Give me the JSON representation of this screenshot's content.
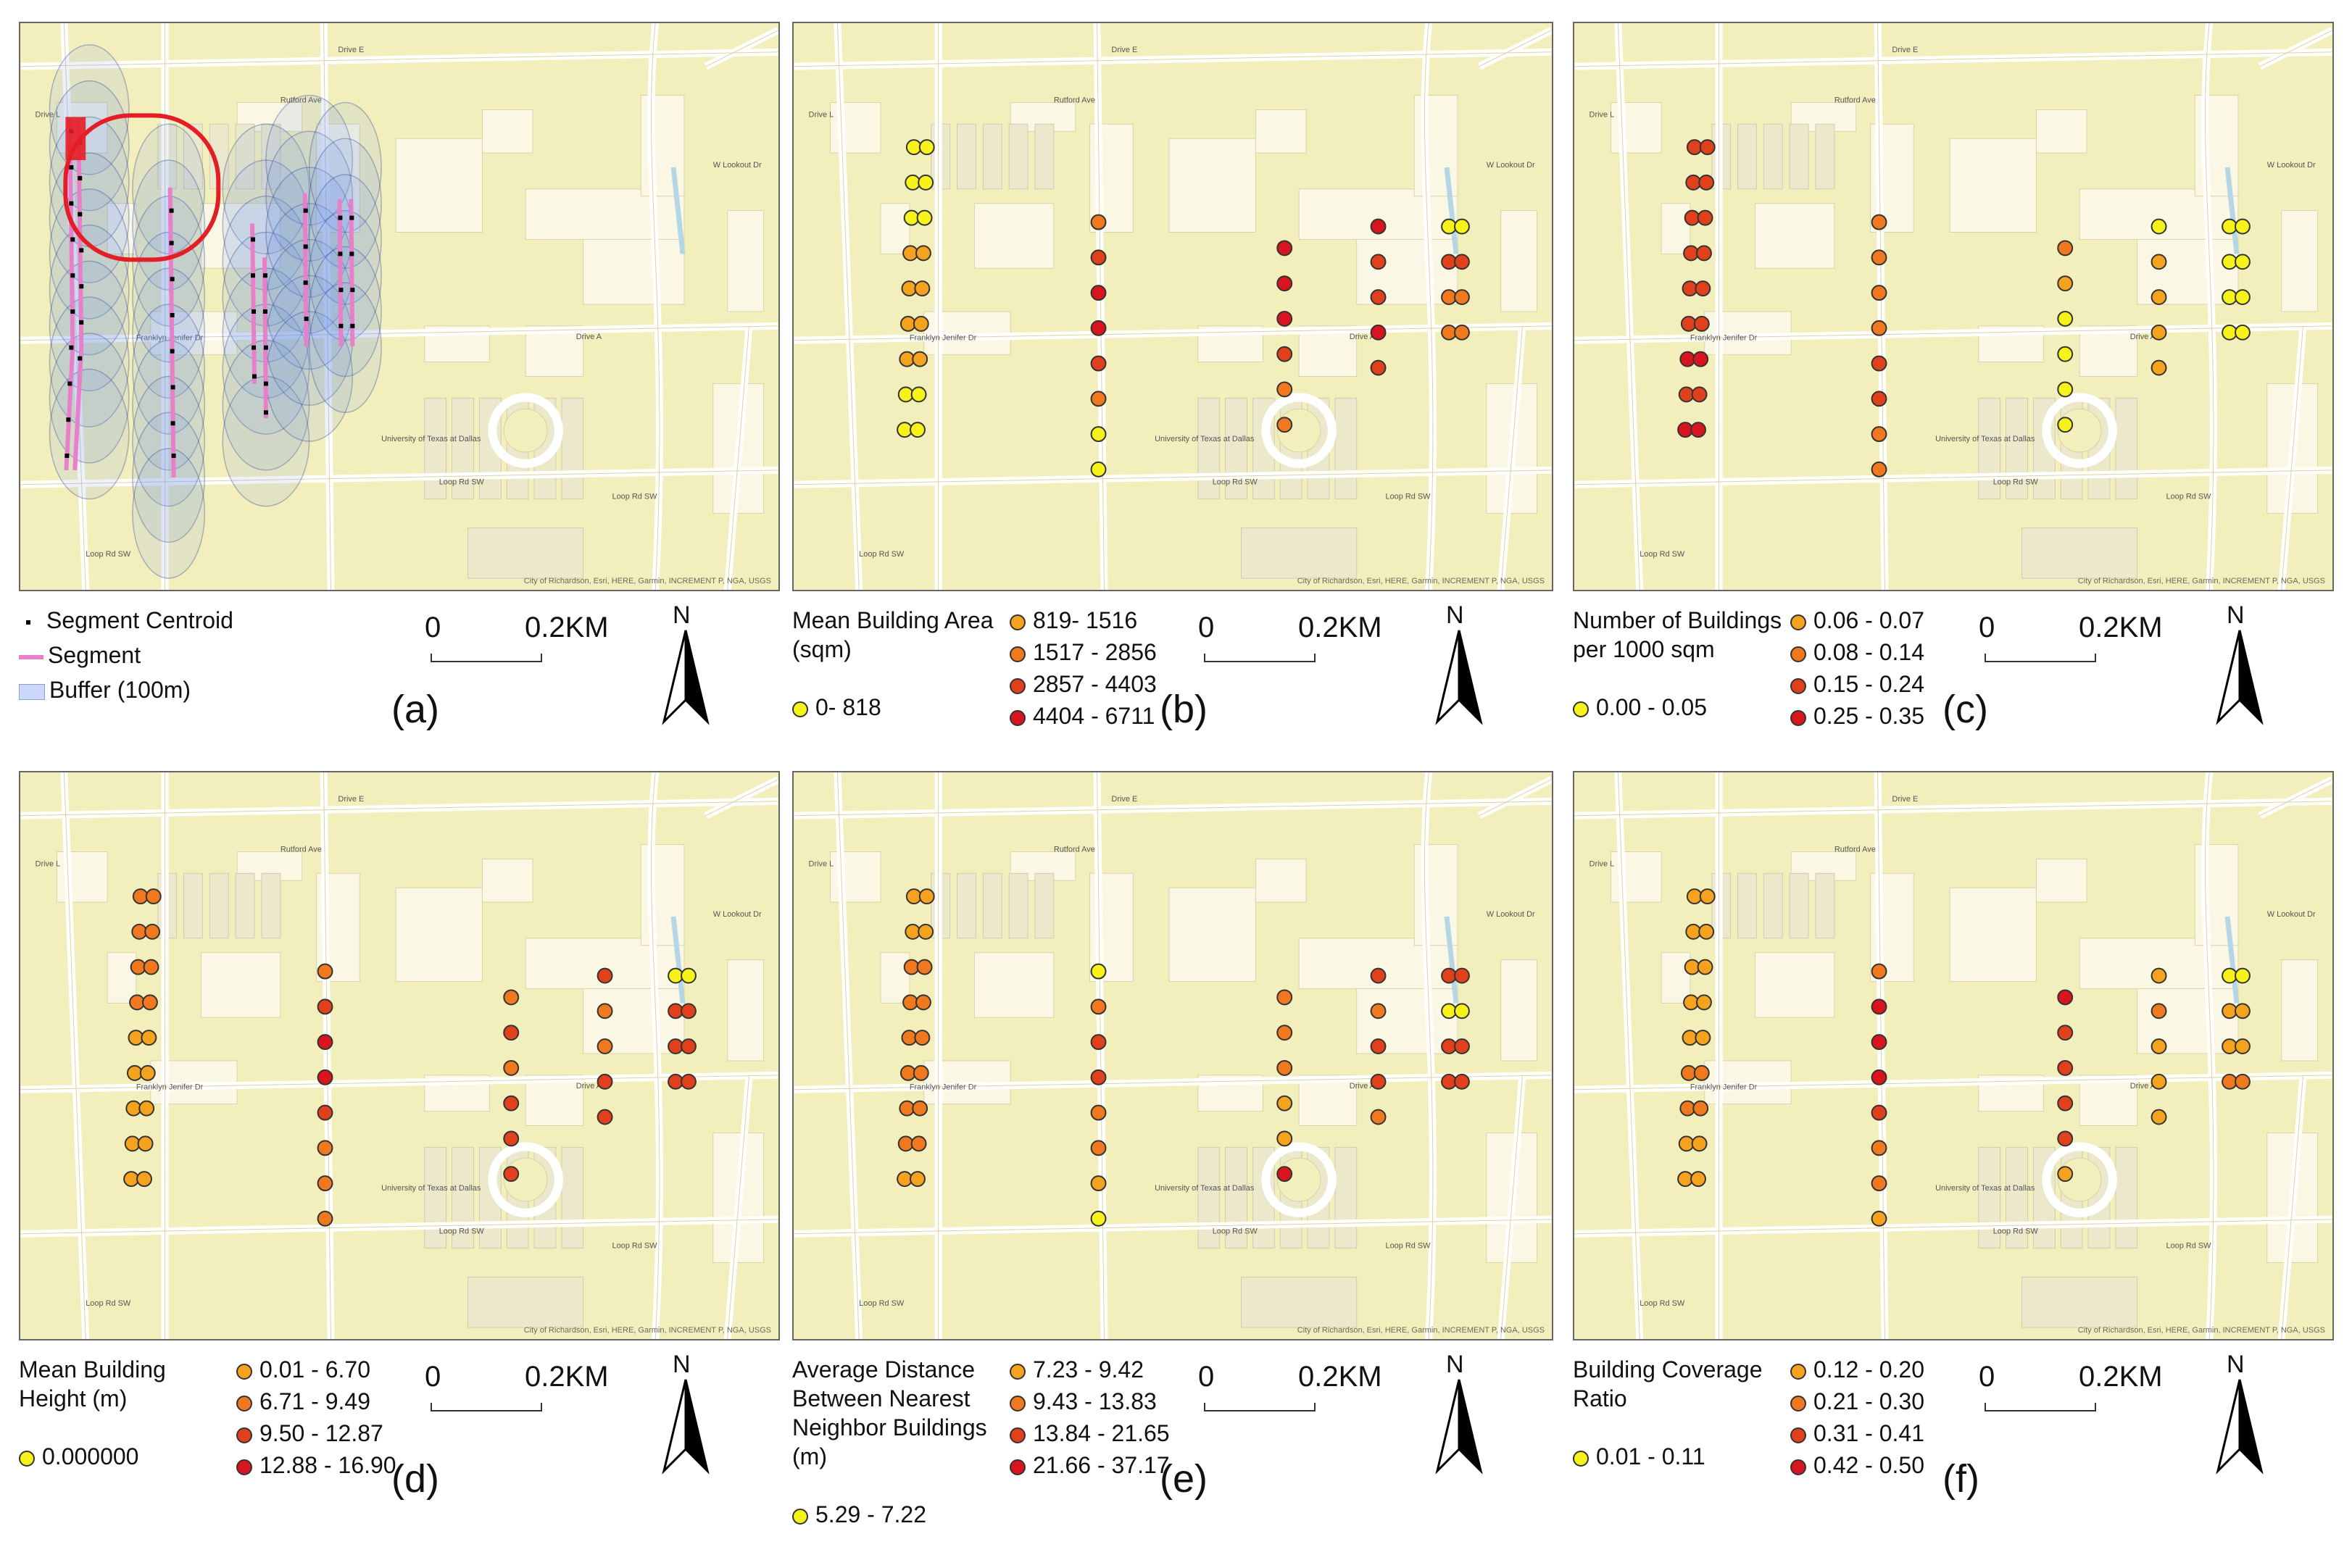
{
  "common": {
    "scale_zero": "0",
    "scale_max": "0.2KM",
    "north_label": "N",
    "attribution": "City of Richardson, Esri, HERE, Garmin, INCREMENT P, NGA, USGS",
    "street_labels": [
      "Drive E",
      "Drive L",
      "Drive A",
      "Franklyn Jenifer Dr",
      "Loop Rd SW",
      "Loop Rd SW",
      "Rutford Ave",
      "W Lookout Dr",
      "Loop Rd SW",
      "University of Texas at Dallas"
    ]
  },
  "colors": {
    "c1": "#f7f21a",
    "c2": "#f5a21e",
    "c3": "#f0781e",
    "c4": "#e0411c",
    "c5": "#d8141e",
    "segment": "#e87fc9",
    "buffer": "#6d8fe8",
    "highlight": "#e41e26"
  },
  "panels": [
    {
      "id": "a",
      "label": "(a)",
      "legend_title": "",
      "items": [
        {
          "label": "Segment Centroid",
          "symbol": "centroid"
        },
        {
          "label": "Segment",
          "symbol": "segment"
        },
        {
          "label": "Buffer (100m)",
          "symbol": "buffer"
        }
      ]
    },
    {
      "id": "b",
      "label": "(b)",
      "legend_title": "Mean Building Area (sqm)",
      "items": [
        {
          "label": "0- 818",
          "color": "#f7f21a"
        },
        {
          "label": "819- 1516",
          "color": "#f5a21e"
        },
        {
          "label": "1517 - 2856",
          "color": "#f0781e"
        },
        {
          "label": "2857 - 4403",
          "color": "#e0411c"
        },
        {
          "label": "4404 - 6711",
          "color": "#d8141e"
        }
      ],
      "columns": [
        [
          1,
          1,
          1,
          2,
          2,
          2,
          2,
          1,
          1
        ],
        [
          3,
          4,
          5,
          5,
          4,
          3,
          1,
          1
        ],
        [
          5,
          5,
          5,
          4,
          3,
          3
        ],
        [
          5,
          4,
          4,
          5,
          4
        ],
        [
          1,
          4,
          3,
          3
        ]
      ]
    },
    {
      "id": "c",
      "label": "(c)",
      "legend_title": "Number of Buildings per 1000 sqm",
      "items": [
        {
          "label": "0.00 - 0.05",
          "color": "#f7f21a"
        },
        {
          "label": "0.06 - 0.07",
          "color": "#f5a21e"
        },
        {
          "label": "0.08 - 0.14",
          "color": "#f0781e"
        },
        {
          "label": "0.15 - 0.24",
          "color": "#e0411c"
        },
        {
          "label": "0.25 - 0.35",
          "color": "#d8141e"
        }
      ],
      "columns": [
        [
          4,
          4,
          4,
          4,
          4,
          4,
          5,
          4,
          5
        ],
        [
          3,
          3,
          3,
          3,
          4,
          4,
          3,
          3
        ],
        [
          3,
          2,
          1,
          1,
          1,
          1
        ],
        [
          1,
          2,
          2,
          2,
          2
        ],
        [
          1,
          1,
          1,
          1
        ]
      ]
    },
    {
      "id": "d",
      "label": "(d)",
      "legend_title": "Mean Building Height (m)",
      "items": [
        {
          "label": "0.000000",
          "color": "#f7f21a"
        },
        {
          "label": "0.01 - 6.70",
          "color": "#f5a21e"
        },
        {
          "label": "6.71 - 9.49",
          "color": "#f0781e"
        },
        {
          "label": "9.50 - 12.87",
          "color": "#e0411c"
        },
        {
          "label": "12.88 - 16.90",
          "color": "#d8141e"
        }
      ],
      "columns": [
        [
          3,
          3,
          3,
          3,
          2,
          2,
          2,
          2,
          2
        ],
        [
          3,
          4,
          5,
          5,
          4,
          3,
          3,
          3
        ],
        [
          3,
          4,
          3,
          4,
          4,
          4
        ],
        [
          4,
          3,
          3,
          4,
          4
        ],
        [
          1,
          4,
          4,
          4
        ]
      ]
    },
    {
      "id": "e",
      "label": "(e)",
      "legend_title": "Average Distance Between Nearest Neighbor Buildings (m)",
      "items": [
        {
          "label": "5.29 - 7.22",
          "color": "#f7f21a"
        },
        {
          "label": "7.23 - 9.42",
          "color": "#f5a21e"
        },
        {
          "label": "9.43 - 13.83",
          "color": "#f0781e"
        },
        {
          "label": "13.84 - 21.65",
          "color": "#e0411c"
        },
        {
          "label": "21.66 - 37.17",
          "color": "#d8141e"
        }
      ],
      "columns": [
        [
          2,
          2,
          3,
          3,
          3,
          3,
          3,
          3,
          2
        ],
        [
          1,
          3,
          4,
          4,
          3,
          3,
          2,
          1
        ],
        [
          3,
          3,
          3,
          2,
          2,
          5
        ],
        [
          4,
          3,
          4,
          4,
          3
        ],
        [
          4,
          1,
          4,
          4
        ]
      ]
    },
    {
      "id": "f",
      "label": "(f)",
      "legend_title": "Building Coverage Ratio",
      "items": [
        {
          "label": "0.01 - 0.11",
          "color": "#f7f21a"
        },
        {
          "label": "0.12 - 0.20",
          "color": "#f5a21e"
        },
        {
          "label": "0.21 - 0.30",
          "color": "#f0781e"
        },
        {
          "label": "0.31 - 0.41",
          "color": "#e0411c"
        },
        {
          "label": "0.42 - 0.50",
          "color": "#d8141e"
        }
      ],
      "columns": [
        [
          2,
          2,
          2,
          2,
          2,
          3,
          3,
          2,
          2
        ],
        [
          3,
          5,
          5,
          5,
          4,
          3,
          3,
          2
        ],
        [
          5,
          4,
          4,
          4,
          4,
          2
        ],
        [
          2,
          3,
          2,
          2,
          2
        ],
        [
          1,
          2,
          2,
          3
        ]
      ]
    }
  ]
}
